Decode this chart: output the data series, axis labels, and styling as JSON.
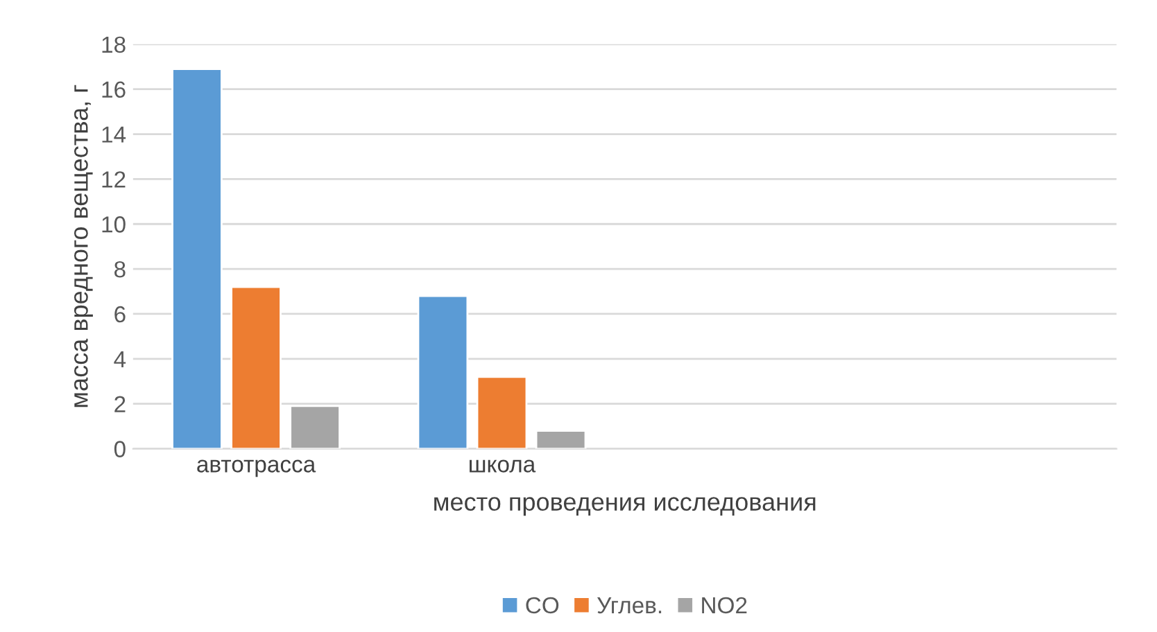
{
  "chart_data": {
    "type": "bar",
    "xlabel": "место проведения исследования",
    "ylabel": "масса вредного вещества, г",
    "categories": [
      "автотрасса",
      "школа",
      null,
      null
    ],
    "series": [
      {
        "name": "CO",
        "color": "#5b9bd5",
        "values": [
          16.9,
          6.8,
          null,
          null
        ]
      },
      {
        "name": "Углев.",
        "color": "#ed7d31",
        "values": [
          7.2,
          3.2,
          null,
          null
        ]
      },
      {
        "name": "NO2",
        "color": "#a5a5a5",
        "values": [
          1.9,
          0.8,
          null,
          null
        ]
      }
    ],
    "ylim": [
      0,
      18
    ],
    "yticks": [
      0,
      2,
      4,
      6,
      8,
      10,
      12,
      14,
      16,
      18
    ],
    "grid": "y",
    "legend": "bottom"
  }
}
